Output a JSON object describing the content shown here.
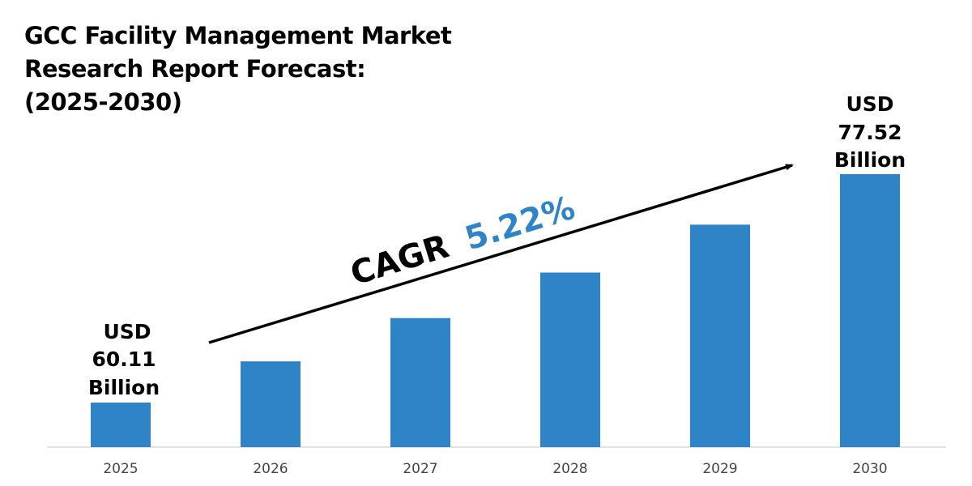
{
  "chart_data": {
    "type": "bar",
    "title": [
      "GCC Facility Management Market",
      "Research Report Forecast:",
      "(2025-2030)"
    ],
    "categories": [
      "2025",
      "2026",
      "2027",
      "2028",
      "2029",
      "2030"
    ],
    "values": [
      60.11,
      63.25,
      66.55,
      70.02,
      73.67,
      77.52
    ],
    "unit": "USD Billion",
    "data_labels": {
      "first": [
        "USD",
        "60.11",
        "Billion"
      ],
      "last": [
        "USD",
        "77.52",
        "Billion"
      ]
    },
    "annotation": {
      "label": "CAGR",
      "value": "5.22%"
    },
    "xlabel": "",
    "ylabel": "",
    "grid": false,
    "legend": "none",
    "colors": {
      "bar": "#2e84c6",
      "cagr_value": "#2e84c6",
      "text": "#000000",
      "tick": "#444444",
      "axis": "#d9d9d9"
    }
  }
}
